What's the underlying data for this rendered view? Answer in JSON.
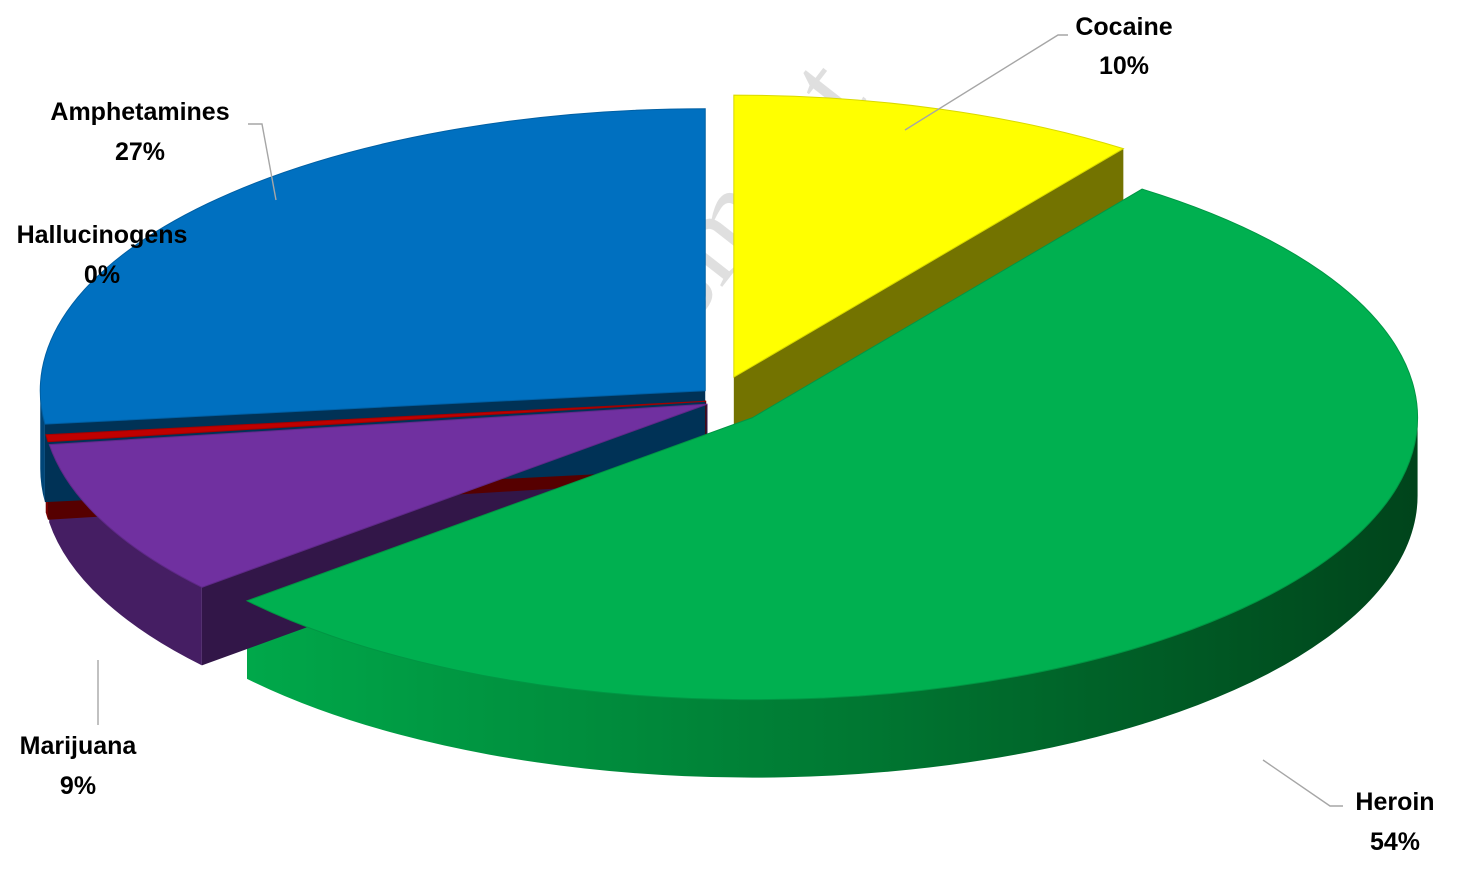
{
  "chart_data": {
    "type": "pie",
    "style": "3d-exploded",
    "slices": [
      {
        "label": "Cocaine",
        "value": 10,
        "percent_label": "10%",
        "color": "#ffff00"
      },
      {
        "label": "Heroin",
        "value": 54,
        "percent_label": "54%",
        "color": "#00b050"
      },
      {
        "label": "Marijuana",
        "value": 9,
        "percent_label": "9%",
        "color": "#7030a0"
      },
      {
        "label": "Hallucinogens",
        "value": 0.4,
        "percent_label": "0%",
        "color": "#c00000"
      },
      {
        "label": "Amphetamines",
        "value": 27,
        "percent_label": "27%",
        "color": "#0070c0"
      }
    ],
    "legend": "none",
    "data_labels": "category name and percent, outside with leader lines"
  }
}
